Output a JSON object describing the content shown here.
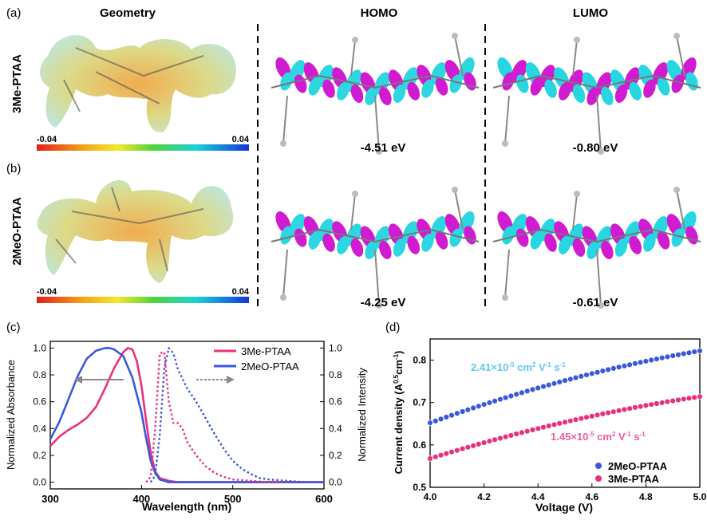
{
  "panel_labels": {
    "a": "(a)",
    "b": "(b)",
    "c": "(c)",
    "d": "(d)"
  },
  "columns": {
    "geometry": "Geometry",
    "homo": "HOMO",
    "lumo": "LUMO"
  },
  "molecules": [
    {
      "name": "3Me-PTAA",
      "homo_energy": "-4.51 eV",
      "lumo_energy": "-0.80 eV",
      "scale_min": "-0.04",
      "scale_max": "0.04"
    },
    {
      "name": "2MeO-PTAA",
      "homo_energy": "-4.25 eV",
      "lumo_energy": "-0.61 eV",
      "scale_min": "-0.04",
      "scale_max": "0.04"
    }
  ],
  "colors": {
    "pink": "#e8307e",
    "blue": "#3b57e0",
    "lumo_cyan": "#27d6e0",
    "lumo_magenta": "#d11bd0",
    "light_blue_text": "#5fc8f0"
  },
  "chart_data": [
    {
      "type": "line",
      "xlabel": "Wavelength (nm)",
      "ylabel": "Normalized Absorbance",
      "y2label": "Normalized Intensity",
      "xlim": [
        300,
        600
      ],
      "ylim": [
        -0.05,
        1.05
      ],
      "xticks": [
        "300",
        "400",
        "500",
        "600"
      ],
      "yticks": [
        "0.0",
        "0.2",
        "0.4",
        "0.6",
        "0.8",
        "1.0"
      ],
      "legend_position": "top-right",
      "series": [
        {
          "name": "3Me-PTAA",
          "kind": "absorbance",
          "x": [
            300,
            310,
            320,
            330,
            340,
            350,
            360,
            370,
            380,
            385,
            390,
            395,
            400,
            405,
            410,
            415,
            420,
            430,
            440,
            450,
            600
          ],
          "y": [
            0.27,
            0.34,
            0.39,
            0.43,
            0.48,
            0.56,
            0.7,
            0.85,
            0.97,
            1.0,
            0.99,
            0.9,
            0.72,
            0.46,
            0.22,
            0.08,
            0.03,
            0.01,
            0.0,
            0.0,
            0.0
          ]
        },
        {
          "name": "2MeO-PTAA",
          "kind": "absorbance",
          "x": [
            300,
            310,
            320,
            330,
            340,
            350,
            360,
            365,
            370,
            380,
            390,
            400,
            405,
            410,
            415,
            420,
            430,
            600
          ],
          "y": [
            0.32,
            0.45,
            0.62,
            0.79,
            0.92,
            0.98,
            1.0,
            1.0,
            0.99,
            0.94,
            0.78,
            0.52,
            0.33,
            0.16,
            0.07,
            0.02,
            0.0,
            0.0
          ],
          "legend": true
        },
        {
          "name": "3Me-PTAA",
          "kind": "PL",
          "x": [
            405,
            410,
            415,
            420,
            425,
            430,
            435,
            440,
            445,
            450,
            460,
            470,
            480,
            490,
            500,
            520,
            540,
            560,
            600
          ],
          "y": [
            0.0,
            0.04,
            0.4,
            0.96,
            0.97,
            0.6,
            0.44,
            0.44,
            0.4,
            0.3,
            0.2,
            0.12,
            0.07,
            0.04,
            0.02,
            0.01,
            0.0,
            0.0,
            0.0
          ]
        },
        {
          "name": "2MeO-PTAA",
          "kind": "PL",
          "x": [
            410,
            415,
            420,
            425,
            430,
            435,
            440,
            450,
            460,
            470,
            480,
            490,
            500,
            510,
            520,
            530,
            540,
            560,
            580,
            600
          ],
          "y": [
            0.0,
            0.05,
            0.35,
            0.85,
            1.0,
            0.96,
            0.84,
            0.7,
            0.6,
            0.48,
            0.36,
            0.25,
            0.16,
            0.1,
            0.06,
            0.03,
            0.02,
            0.01,
            0.0,
            0.0
          ]
        }
      ],
      "legend": [
        "3Me-PTAA",
        "2MeO-PTAA"
      ]
    },
    {
      "type": "scatter",
      "xlabel": "Voltage (V)",
      "ylabel": "Current density (A",
      "ylabel_sup": "0.5",
      "ylabel_end": "cm",
      "ylabel_sup2": "-1",
      "ylabel_close": ")",
      "xlim": [
        4.0,
        5.0
      ],
      "ylim": [
        0.5,
        0.85
      ],
      "xticks": [
        "4.0",
        "4.2",
        "4.4",
        "4.6",
        "4.8",
        "5.0"
      ],
      "yticks": [
        "0.5",
        "0.6",
        "0.7",
        "0.8"
      ],
      "legend_position": "bottom-right",
      "series": [
        {
          "name": "2MeO-PTAA",
          "y_start": 0.652,
          "y_end": 0.822,
          "points": 51
        },
        {
          "name": "3Me-PTAA",
          "y_start": 0.568,
          "y_end": 0.714,
          "points": 51
        }
      ],
      "annotations": [
        {
          "base": "2.41×10",
          "sup": "-5",
          "unit": " cm",
          "sup2": "2",
          "rest": " V",
          "sup3": "-1",
          "rest2": " s",
          "sup4": "-1"
        },
        {
          "base": "1.45×10",
          "sup": "-5",
          "unit": " cm",
          "sup2": "2",
          "rest": " V",
          "sup3": "-1",
          "rest2": " s",
          "sup4": "-1"
        }
      ]
    }
  ]
}
